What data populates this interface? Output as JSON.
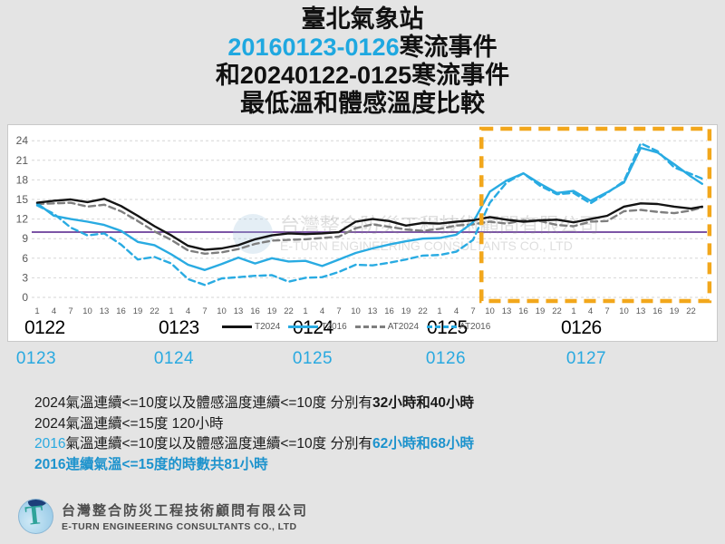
{
  "title": {
    "line1": "臺北氣象站",
    "line2_blue": "20160123-0126",
    "line2_black": "寒流事件",
    "line3": "和20240122-0125寒流事件",
    "line4": "最低溫和體感溫度比較"
  },
  "chart_data": {
    "type": "line",
    "ylim": [
      0,
      24
    ],
    "yticks": [
      0,
      3,
      6,
      9,
      12,
      15,
      18,
      21,
      24
    ],
    "hour_ticks": [
      "1",
      "4",
      "7",
      "10",
      "13",
      "16",
      "19",
      "22"
    ],
    "day_labels_2024": [
      "0122",
      "0123",
      "0124",
      "0125",
      "0126"
    ],
    "day_labels_2016": [
      "0123",
      "0124",
      "0125",
      "0126",
      "0127"
    ],
    "reference_line_y": 10,
    "reference_line_color": "#6a3d9a",
    "highlight_box": {
      "hour_from": 79.5,
      "hour_to": 120.3,
      "color": "#f2a71c"
    },
    "grid": true,
    "legend_position": "bottom-center",
    "x_hours": [
      0,
      3,
      6,
      9,
      12,
      15,
      18,
      21,
      24,
      27,
      30,
      33,
      36,
      39,
      42,
      45,
      48,
      51,
      54,
      57,
      60,
      63,
      66,
      69,
      72,
      75,
      78,
      81,
      84,
      87,
      90,
      93,
      96,
      99,
      102,
      105,
      108,
      111,
      114,
      117,
      119
    ],
    "series": [
      {
        "name": "T2024",
        "color": "#141414",
        "dash": "solid",
        "values": [
          14.5,
          14.8,
          15.0,
          14.6,
          15.1,
          14.0,
          12.5,
          10.9,
          9.5,
          7.9,
          7.3,
          7.5,
          8.0,
          8.9,
          9.5,
          9.8,
          9.7,
          9.8,
          10.0,
          11.6,
          12.0,
          11.7,
          11.0,
          11.4,
          11.3,
          11.6,
          11.8,
          12.3,
          11.9,
          11.6,
          11.8,
          11.9,
          11.5,
          12.0,
          12.5,
          13.9,
          14.4,
          14.3,
          13.9,
          13.6,
          13.9
        ]
      },
      {
        "name": "T2016",
        "color": "#29abe2",
        "dash": "solid",
        "values": [
          14.4,
          12.5,
          12.0,
          11.6,
          11.1,
          10.2,
          8.5,
          8.0,
          6.6,
          5.0,
          4.2,
          5.1,
          6.1,
          5.2,
          6.0,
          5.5,
          5.6,
          4.8,
          5.8,
          6.8,
          7.5,
          8.1,
          8.6,
          9.0,
          9.1,
          9.6,
          11.5,
          16.2,
          17.9,
          19.0,
          17.4,
          16.0,
          16.3,
          14.8,
          16.1,
          17.6,
          22.9,
          22.2,
          20.4,
          18.5,
          17.4
        ]
      },
      {
        "name": "AT2024",
        "color": "#7f7f7f",
        "dash": "dashed",
        "values": [
          14.3,
          14.4,
          14.5,
          13.9,
          14.2,
          13.2,
          11.7,
          10.1,
          8.8,
          7.2,
          6.7,
          6.9,
          7.4,
          8.2,
          8.7,
          8.8,
          8.9,
          9.1,
          9.3,
          10.6,
          11.2,
          10.8,
          10.4,
          10.2,
          10.5,
          11.0,
          11.2,
          11.6,
          11.3,
          11.8,
          11.7,
          11.1,
          10.9,
          11.6,
          11.7,
          13.2,
          13.4,
          13.1,
          12.9,
          13.3,
          13.8
        ]
      },
      {
        "name": "AT2016",
        "color": "#29abe2",
        "dash": "dashed",
        "values": [
          14.1,
          12.8,
          10.7,
          9.5,
          9.8,
          8.1,
          5.8,
          6.2,
          5.2,
          2.8,
          1.9,
          2.9,
          3.1,
          3.3,
          3.4,
          2.4,
          3.0,
          3.1,
          3.9,
          5.0,
          4.9,
          5.3,
          5.8,
          6.4,
          6.5,
          7.0,
          8.8,
          14.5,
          17.6,
          19.0,
          17.1,
          15.8,
          16.0,
          14.4,
          16.0,
          17.8,
          23.6,
          22.4,
          19.9,
          18.9,
          18.2
        ]
      }
    ]
  },
  "watermark": {
    "line1": "台灣整合防災工程技術顧問有限公司",
    "line2": "E-TURN ENGINEERING CONSULTANTS CO., LTD"
  },
  "summary": {
    "lines": [
      {
        "parts": [
          {
            "text": "2024氣溫連續<=10度以及體感溫度連續<=10度 分別有",
            "style": "default"
          },
          {
            "text": "32小時和40小時",
            "style": "bold"
          }
        ]
      },
      {
        "parts": [
          {
            "text": "2024氣溫連續<=15度 120小時",
            "style": "default"
          }
        ]
      },
      {
        "parts": [
          {
            "text": "2016",
            "style": "blue"
          },
          {
            "text": "氣溫連續<=10度以及體感溫度連續<=10度 分別有",
            "style": "default"
          },
          {
            "text": "62小時和68小時",
            "style": "blue-bold"
          }
        ]
      },
      {
        "parts": [
          {
            "text": "2016連續氣溫<=15度的時數共81小時",
            "style": "blue-bold"
          }
        ]
      }
    ]
  },
  "footer": {
    "company_zh": "台灣整合防災工程技術顧問有限公司",
    "company_en": "E-TURN ENGINEERING CONSULTANTS CO., LTD"
  }
}
